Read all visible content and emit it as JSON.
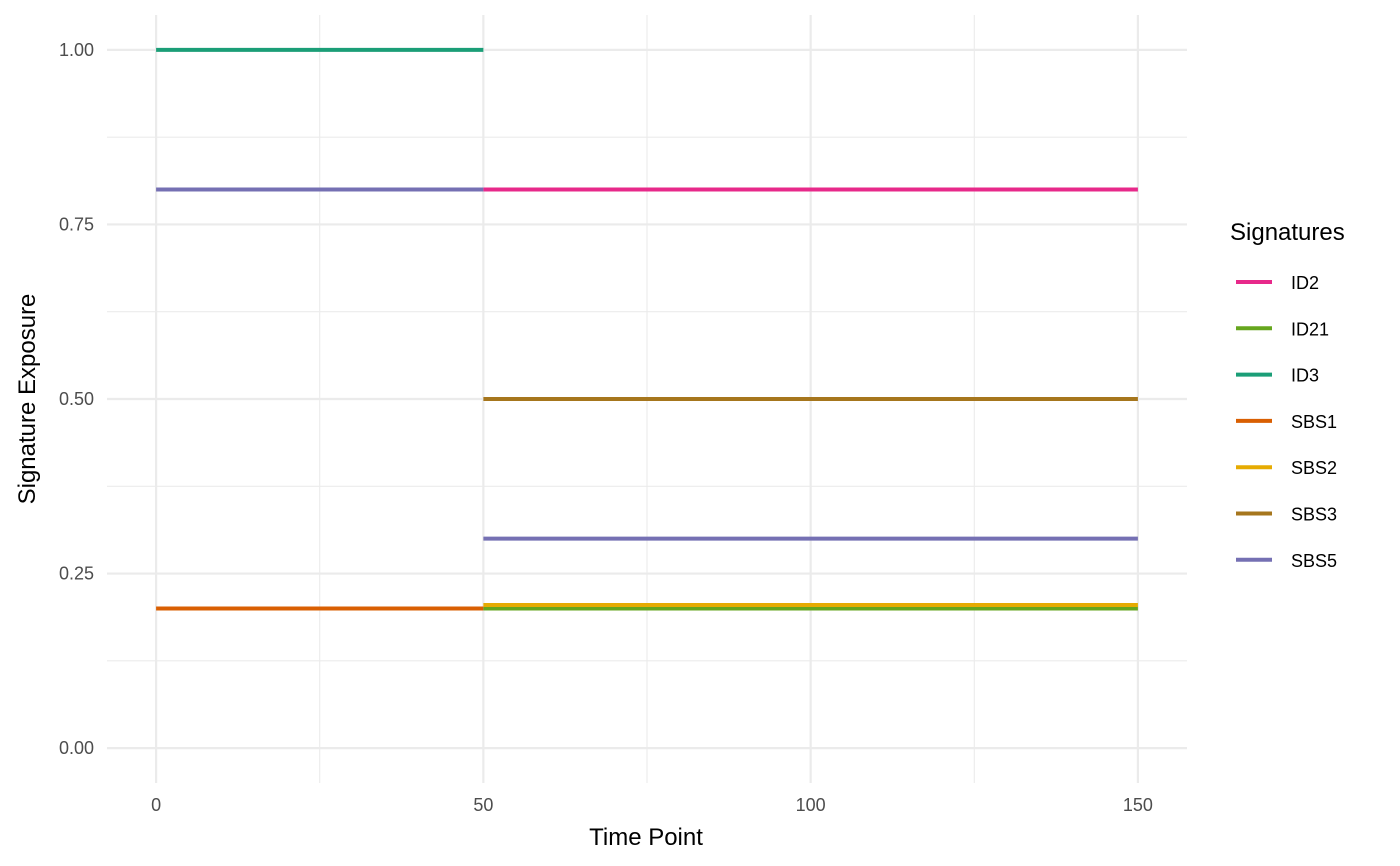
{
  "chart_data": {
    "type": "line",
    "title": "",
    "xlabel": "Time Point",
    "ylabel": "Signature Exposure",
    "xlim": [
      -7.5,
      157.5
    ],
    "ylim": [
      -0.05,
      1.05
    ],
    "x_ticks": [
      0,
      50,
      100,
      150
    ],
    "x_tick_labels": [
      "0",
      "50",
      "100",
      "150"
    ],
    "x_minor_ticks": [
      25,
      75,
      125
    ],
    "y_ticks": [
      0,
      0.25,
      0.5,
      0.75,
      1.0
    ],
    "y_tick_labels": [
      "0.00",
      "0.25",
      "0.50",
      "0.75",
      "1.00"
    ],
    "y_minor_ticks": [
      0.125,
      0.375,
      0.625,
      0.875
    ],
    "grid": true,
    "legend": {
      "title": "Signatures",
      "placement": "right"
    },
    "series": [
      {
        "name": "ID2",
        "color": "#E7298A",
        "segments": [
          {
            "x": [
              50,
              150
            ],
            "y": [
              0.8,
              0.8
            ]
          }
        ]
      },
      {
        "name": "ID21",
        "color": "#66A61E",
        "segments": [
          {
            "x": [
              50,
              150
            ],
            "y": [
              0.2,
              0.2
            ]
          }
        ]
      },
      {
        "name": "ID3",
        "color": "#1B9E77",
        "segments": [
          {
            "x": [
              0,
              50
            ],
            "y": [
              1.0,
              1.0
            ]
          }
        ]
      },
      {
        "name": "SBS1",
        "color": "#D95F02",
        "segments": [
          {
            "x": [
              0,
              50
            ],
            "y": [
              0.2,
              0.2
            ]
          }
        ]
      },
      {
        "name": "SBS2",
        "color": "#E6AB02",
        "segments": [
          {
            "x": [
              50,
              150
            ],
            "y": [
              0.205,
              0.205
            ]
          }
        ]
      },
      {
        "name": "SBS3",
        "color": "#A6761D",
        "segments": [
          {
            "x": [
              50,
              150
            ],
            "y": [
              0.5,
              0.5
            ]
          }
        ]
      },
      {
        "name": "SBS5",
        "color": "#7570B3",
        "segments": [
          {
            "x": [
              0,
              50
            ],
            "y": [
              0.8,
              0.8
            ]
          },
          {
            "x": [
              50,
              150
            ],
            "y": [
              0.3,
              0.3
            ]
          }
        ]
      }
    ]
  }
}
